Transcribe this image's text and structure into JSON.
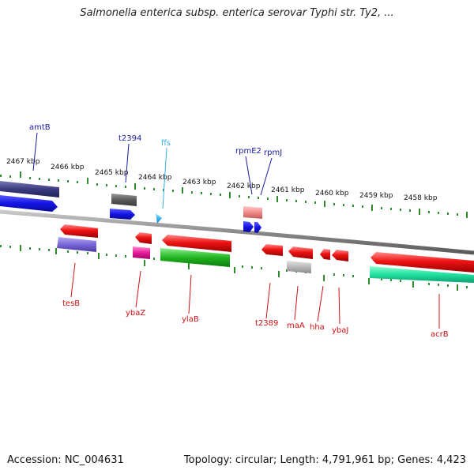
{
  "title": "Salmonella enterica subsp. enterica serovar Typhi str. Ty2, ...",
  "accession": "Accession: NC_004631",
  "topology": "Topology: circular; Length: 4,791,961 bp; Genes: 4,423",
  "colors": {
    "top_label": "#1a1aa0",
    "rna_label": "#3ab0e0",
    "bottom_label": "#cc1111",
    "tick": "#2e8b2e",
    "backbone": "#8a8a8a"
  },
  "kbp_labels": [
    "2467 kbp",
    "2466 kbp",
    "2465 kbp",
    "2464 kbp",
    "2463 kbp",
    "2462 kbp",
    "2461 kbp",
    "2460 kbp",
    "2459 kbp",
    "2458 kbp"
  ],
  "top_genes": [
    "amtB",
    "t2394",
    "ffs",
    "rpmE2",
    "rpmJ"
  ],
  "bottom_genes": [
    "tesB",
    "ybaZ",
    "ylaB",
    "t2389",
    "maA",
    "hha",
    "ybaJ",
    "acrB"
  ]
}
